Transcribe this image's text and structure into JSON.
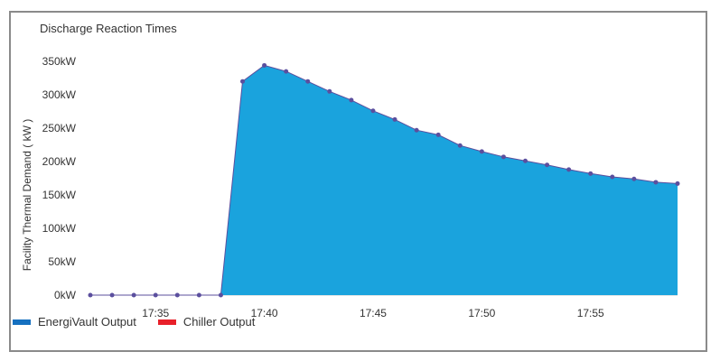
{
  "chart_data": {
    "type": "area",
    "title": "Discharge Reaction Times",
    "ylabel": "Facility Thermal Demand ( kW )",
    "y_ticks": [
      "0kW",
      "50kW",
      "100kW",
      "150kW",
      "200kW",
      "250kW",
      "300kW",
      "350kW"
    ],
    "x_ticks": [
      "17:35",
      "17:40",
      "17:45",
      "17:50",
      "17:55"
    ],
    "ylim": [
      0,
      350
    ],
    "legend_position": "bottom-left",
    "series": [
      {
        "name": "EnergiVault Output",
        "color": "#1aa3dd",
        "marker_color": "#5b4f9e",
        "legend_color": "#1570c0",
        "x": [
          "17:32",
          "17:33",
          "17:34",
          "17:35",
          "17:36",
          "17:37",
          "17:38",
          "17:39",
          "17:40",
          "17:41",
          "17:42",
          "17:43",
          "17:44",
          "17:45",
          "17:46",
          "17:47",
          "17:48",
          "17:49",
          "17:50",
          "17:51",
          "17:52",
          "17:53",
          "17:54",
          "17:55",
          "17:56",
          "17:57",
          "17:58",
          "17:59"
        ],
        "values": [
          0,
          0,
          0,
          0,
          0,
          0,
          0,
          320,
          344,
          335,
          320,
          305,
          292,
          276,
          263,
          247,
          240,
          224,
          215,
          207,
          201,
          195,
          188,
          182,
          177,
          174,
          169,
          167
        ]
      },
      {
        "name": "Chiller Output",
        "color": "#e8202a",
        "values": []
      }
    ]
  }
}
